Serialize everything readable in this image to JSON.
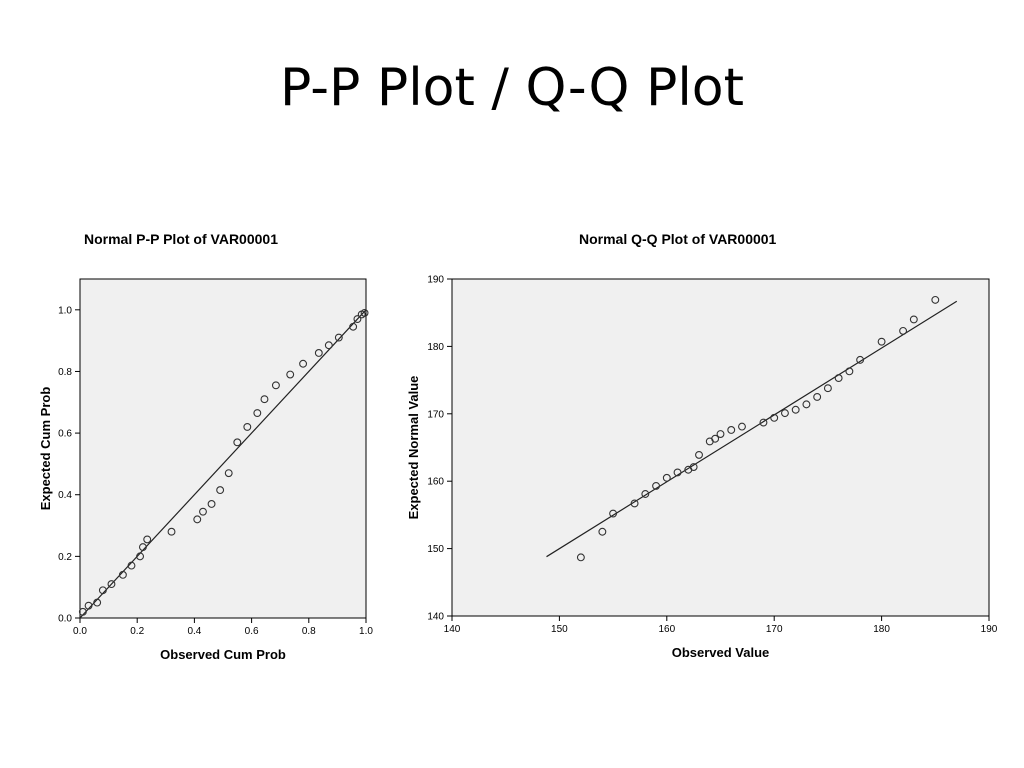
{
  "slide": {
    "title": "P-P Plot / Q-Q Plot"
  },
  "chart_data": [
    {
      "type": "scatter",
      "title": "Normal P-P Plot of VAR00001",
      "xlabel": "Observed Cum Prob",
      "ylabel": "Expected Cum Prob",
      "xlim": [
        0,
        1
      ],
      "ylim": [
        0,
        1.1
      ],
      "x_ticks": [
        "0.0",
        "0.2",
        "0.4",
        "0.6",
        "0.8",
        "1.0"
      ],
      "y_ticks": [
        "0.0",
        "0.2",
        "0.4",
        "0.6",
        "0.8",
        "1.0"
      ],
      "reference_line": [
        [
          0,
          0
        ],
        [
          1,
          1
        ]
      ],
      "grid": false,
      "background": "#f0f0f0",
      "points": [
        [
          0.01,
          0.02
        ],
        [
          0.03,
          0.04
        ],
        [
          0.06,
          0.05
        ],
        [
          0.08,
          0.09
        ],
        [
          0.11,
          0.11
        ],
        [
          0.15,
          0.14
        ],
        [
          0.18,
          0.17
        ],
        [
          0.21,
          0.2
        ],
        [
          0.22,
          0.23
        ],
        [
          0.235,
          0.255
        ],
        [
          0.32,
          0.28
        ],
        [
          0.41,
          0.32
        ],
        [
          0.43,
          0.345
        ],
        [
          0.46,
          0.37
        ],
        [
          0.49,
          0.415
        ],
        [
          0.52,
          0.47
        ],
        [
          0.55,
          0.57
        ],
        [
          0.585,
          0.62
        ],
        [
          0.62,
          0.665
        ],
        [
          0.645,
          0.71
        ],
        [
          0.685,
          0.755
        ],
        [
          0.735,
          0.79
        ],
        [
          0.78,
          0.825
        ],
        [
          0.835,
          0.86
        ],
        [
          0.87,
          0.885
        ],
        [
          0.905,
          0.91
        ],
        [
          0.955,
          0.945
        ],
        [
          0.97,
          0.97
        ],
        [
          0.985,
          0.985
        ],
        [
          0.995,
          0.99
        ]
      ]
    },
    {
      "type": "scatter",
      "title": "Normal Q-Q Plot of VAR00001",
      "xlabel": "Observed Value",
      "ylabel": "Expected Normal Value",
      "xlim": [
        140,
        190
      ],
      "ylim": [
        140,
        190
      ],
      "x_ticks": [
        "140",
        "150",
        "160",
        "170",
        "180",
        "190"
      ],
      "y_ticks": [
        "140",
        "150",
        "160",
        "170",
        "180",
        "190"
      ],
      "reference_line": [
        [
          148.8,
          148.8
        ],
        [
          187,
          186.7
        ]
      ],
      "grid": false,
      "background": "#f0f0f0",
      "points": [
        [
          152,
          148.7
        ],
        [
          154,
          152.5
        ],
        [
          155,
          155.2
        ],
        [
          157,
          156.7
        ],
        [
          158,
          158.1
        ],
        [
          159,
          159.3
        ],
        [
          160,
          160.5
        ],
        [
          161,
          161.3
        ],
        [
          162,
          161.7
        ],
        [
          162.5,
          162.1
        ],
        [
          163,
          163.9
        ],
        [
          164,
          165.9
        ],
        [
          164.5,
          166.3
        ],
        [
          165,
          167
        ],
        [
          166,
          167.6
        ],
        [
          167,
          168.1
        ],
        [
          169,
          168.7
        ],
        [
          170,
          169.4
        ],
        [
          171,
          170.1
        ],
        [
          172,
          170.6
        ],
        [
          173,
          171.4
        ],
        [
          174,
          172.5
        ],
        [
          175,
          173.8
        ],
        [
          176,
          175.3
        ],
        [
          177,
          176.3
        ],
        [
          178,
          178
        ],
        [
          180,
          180.7
        ],
        [
          182,
          182.3
        ],
        [
          183,
          184
        ],
        [
          185,
          186.9
        ]
      ]
    }
  ]
}
